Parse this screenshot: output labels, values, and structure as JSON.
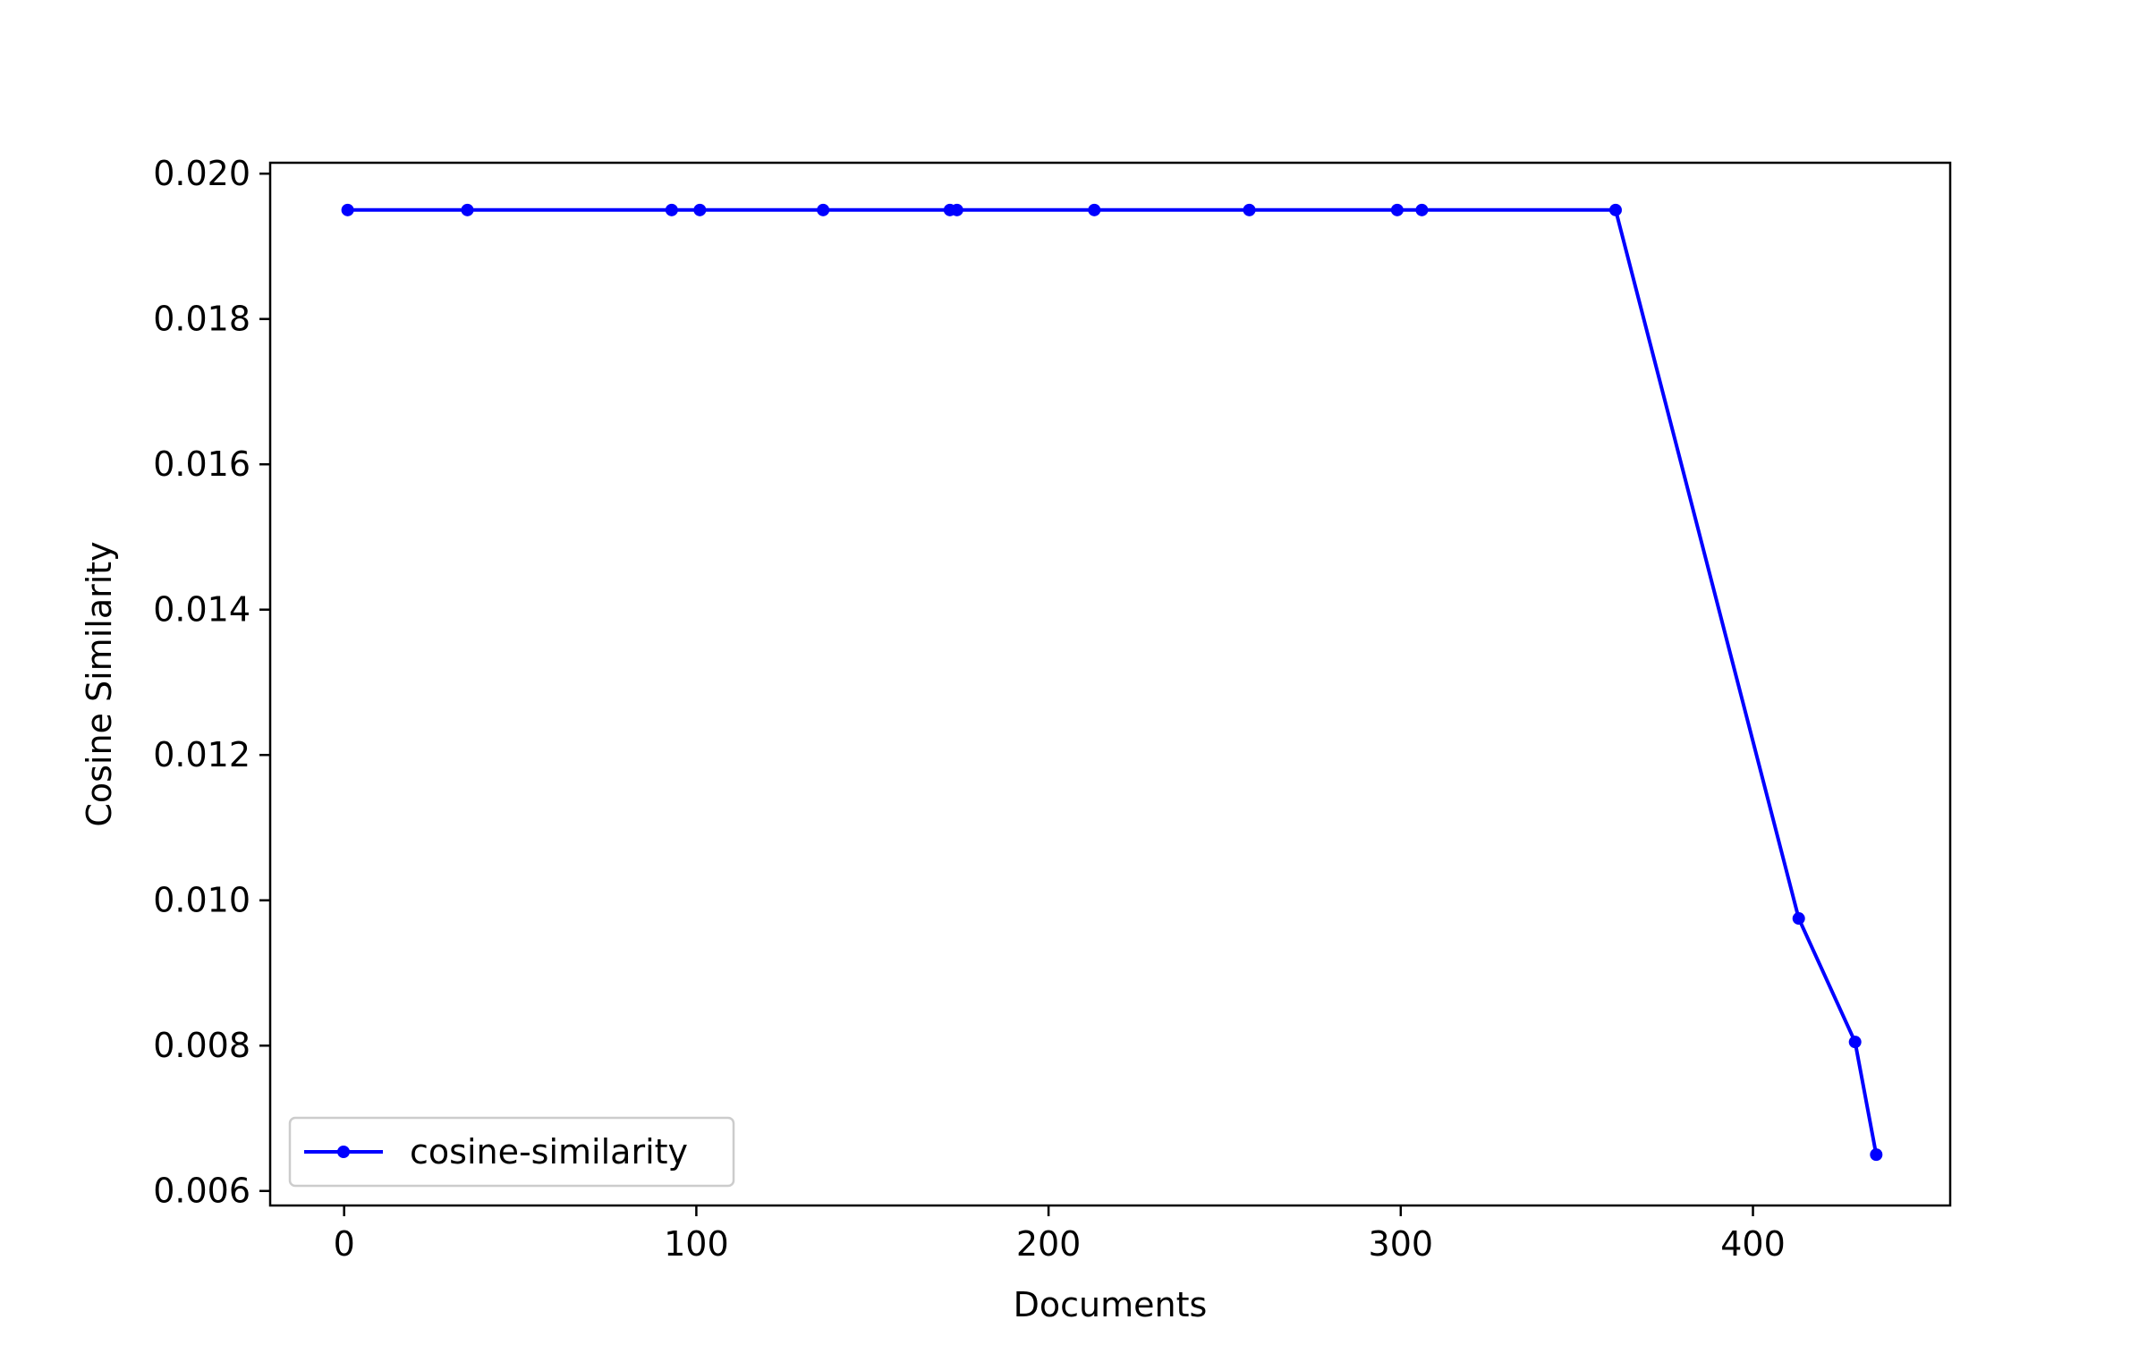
{
  "chart_data": {
    "type": "line",
    "title": "",
    "xlabel": "Documents",
    "ylabel": "Cosine Similarity",
    "xlim": [
      -21,
      456
    ],
    "ylim": [
      0.0058,
      0.02015
    ],
    "x_ticks": [
      0,
      100,
      200,
      300,
      400
    ],
    "x_tick_labels": [
      "0",
      "100",
      "200",
      "300",
      "400"
    ],
    "y_ticks": [
      0.006,
      0.008,
      0.01,
      0.012,
      0.014,
      0.016,
      0.018,
      0.02
    ],
    "y_tick_labels": [
      "0.006",
      "0.008",
      "0.010",
      "0.012",
      "0.014",
      "0.016",
      "0.018",
      "0.020"
    ],
    "grid": false,
    "legend_position": "lower-left",
    "series": [
      {
        "name": "cosine-similarity",
        "color": "#0000ff",
        "marker": "point",
        "x": [
          1,
          35,
          93,
          101,
          136,
          172,
          174,
          213,
          257,
          299,
          306,
          361,
          413,
          429,
          435
        ],
        "y": [
          0.0195,
          0.0195,
          0.0195,
          0.0195,
          0.0195,
          0.0195,
          0.0195,
          0.0195,
          0.0195,
          0.0195,
          0.0195,
          0.0195,
          0.00975,
          0.00805,
          0.0065
        ]
      }
    ]
  }
}
